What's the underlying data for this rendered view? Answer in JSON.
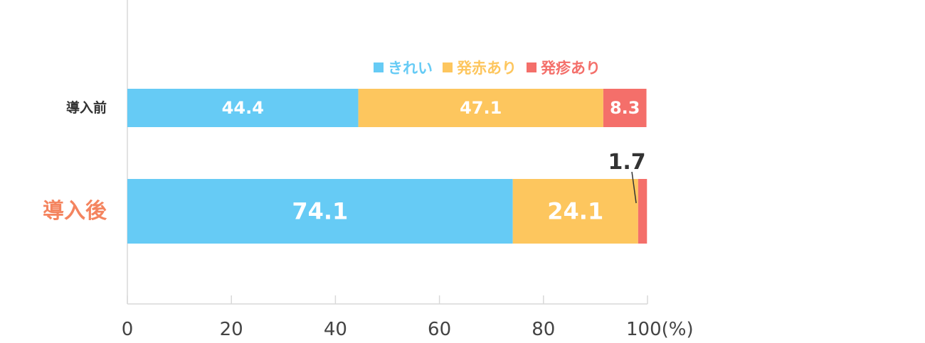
{
  "chart_data": {
    "type": "bar",
    "orientation": "horizontal",
    "stacked": true,
    "categories": [
      "導入前",
      "導入後"
    ],
    "highlight_category": "導入後",
    "series": [
      {
        "name": "きれい",
        "values": [
          44.4,
          74.1
        ],
        "color": "#66cbf5"
      },
      {
        "name": "発赤あり",
        "values": [
          47.1,
          24.1
        ],
        "color": "#fdc65e"
      },
      {
        "name": "発疹あり",
        "values": [
          8.3,
          1.7
        ],
        "color": "#f46f6a"
      }
    ],
    "xlim": [
      0,
      100
    ],
    "xticks": [
      "0",
      "20",
      "40",
      "60",
      "80",
      "100(%)"
    ],
    "xlabel": "",
    "ylabel": "",
    "title": "",
    "legend": "top-right",
    "grid": false
  }
}
